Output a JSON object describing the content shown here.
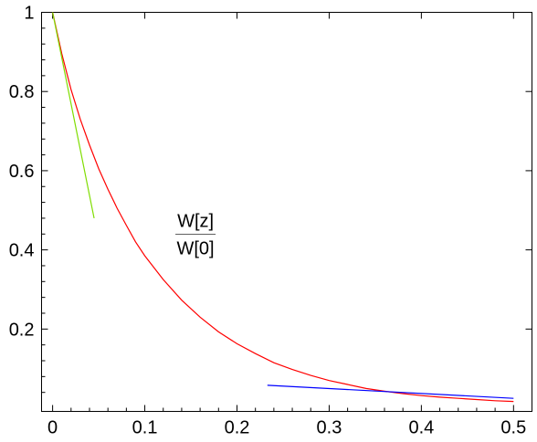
{
  "chart_data": {
    "type": "line",
    "title": "",
    "xlabel": "",
    "ylabel": "",
    "xlim": [
      -0.012,
      0.52
    ],
    "ylim": [
      -0.008,
      1.0
    ],
    "grid": false,
    "x_ticks": [
      0,
      0.1,
      0.2,
      0.3,
      0.4,
      0.5
    ],
    "x_tick_labels": [
      "0",
      "0.1",
      "0.2",
      "0.3",
      "0.4",
      "0.5"
    ],
    "y_ticks": [
      0.2,
      0.4,
      0.6,
      0.8,
      1.0
    ],
    "y_tick_labels": [
      "0.2",
      "0.4",
      "0.6",
      "0.8",
      "1"
    ],
    "annotation": {
      "numerator": "W[z]",
      "denominator": "W[0]",
      "x": 0.155,
      "y": 0.44
    },
    "series": [
      {
        "color": "#ff0000",
        "x": [
          0,
          0.01,
          0.02,
          0.03,
          0.04,
          0.05,
          0.06,
          0.07,
          0.08,
          0.09,
          0.1,
          0.12,
          0.14,
          0.16,
          0.18,
          0.2,
          0.22,
          0.24,
          0.26,
          0.28,
          0.3,
          0.32,
          0.34,
          0.36,
          0.38,
          0.4,
          0.42,
          0.44,
          0.46,
          0.48,
          0.5
        ],
        "values": [
          1.0,
          0.895,
          0.805,
          0.73,
          0.665,
          0.605,
          0.553,
          0.505,
          0.462,
          0.42,
          0.385,
          0.325,
          0.273,
          0.23,
          0.193,
          0.163,
          0.138,
          0.115,
          0.098,
          0.083,
          0.07,
          0.06,
          0.05,
          0.043,
          0.037,
          0.032,
          0.028,
          0.025,
          0.022,
          0.019,
          0.017
        ]
      },
      {
        "color": "#7fdd00",
        "x": [
          0,
          0.045
        ],
        "values": [
          1.0,
          0.48
        ]
      },
      {
        "color": "#0000ff",
        "x": [
          0.233,
          0.5
        ],
        "values": [
          0.058,
          0.025
        ]
      }
    ]
  }
}
